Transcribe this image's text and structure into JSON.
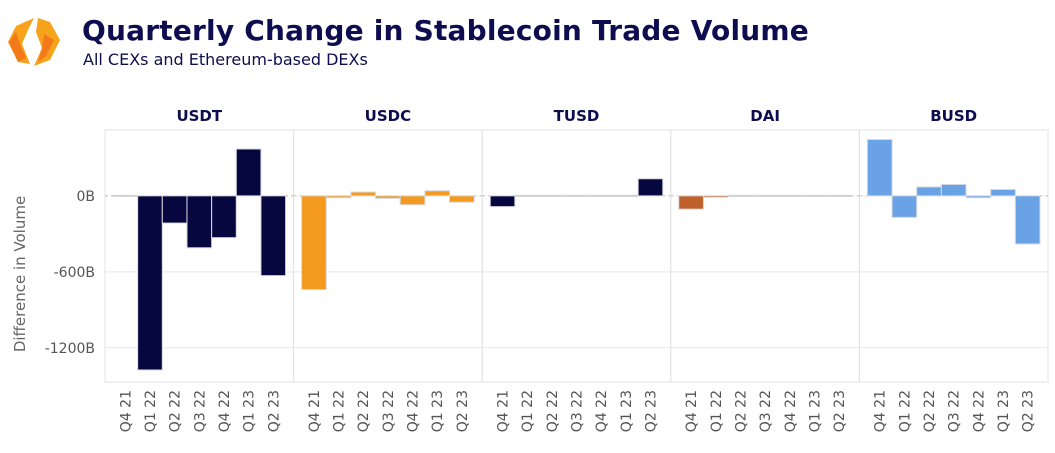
{
  "header": {
    "title": "Quarterly Change in Stablecoin Trade Volume",
    "subtitle": "All CEXs and Ethereum-based DEXs",
    "logo": "hexagon-brackets-logo"
  },
  "chart_data": {
    "type": "bar",
    "layout": "faceted",
    "title": "Quarterly Change in Stablecoin Trade Volume",
    "subtitle": "All CEXs and Ethereum-based DEXs",
    "xlabel": "",
    "ylabel": "Difference in Volume",
    "ylim": [
      -1470,
      520
    ],
    "yticks": [
      0,
      -600,
      -1200
    ],
    "ytick_labels": [
      "0B",
      "-600B",
      "-1200B"
    ],
    "unit": "B",
    "grid": true,
    "zero_line": "dashed",
    "categories": [
      "Q4 21",
      "Q1 22",
      "Q2 22",
      "Q3 22",
      "Q4 22",
      "Q1 23",
      "Q2 23"
    ],
    "series": [
      {
        "name": "USDT",
        "color": "#07073f",
        "values": [
          0,
          -1375,
          -215,
          -410,
          -330,
          370,
          -630
        ]
      },
      {
        "name": "USDC",
        "color": "#f39a1f",
        "values": [
          -740,
          -15,
          30,
          -20,
          -70,
          40,
          -50
        ]
      },
      {
        "name": "TUSD",
        "color": "#07073f",
        "values": [
          -85,
          -3,
          -3,
          -3,
          -3,
          -3,
          135
        ]
      },
      {
        "name": "DAI",
        "color": "#c0602a",
        "values": [
          -105,
          -8,
          -3,
          -3,
          -3,
          -3,
          -3
        ]
      },
      {
        "name": "BUSD",
        "color": "#6aa2e6",
        "values": [
          445,
          -170,
          70,
          90,
          -15,
          50,
          -380
        ]
      }
    ]
  }
}
